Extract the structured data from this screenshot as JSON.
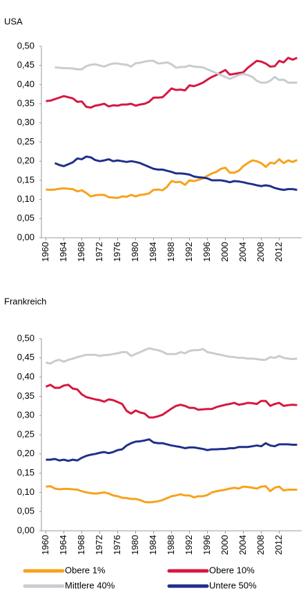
{
  "chart_data": [
    {
      "type": "line",
      "title": "USA",
      "x": [
        1960,
        1961,
        1962,
        1963,
        1964,
        1965,
        1966,
        1967,
        1968,
        1969,
        1970,
        1971,
        1972,
        1973,
        1974,
        1975,
        1976,
        1977,
        1978,
        1979,
        1980,
        1981,
        1982,
        1983,
        1984,
        1985,
        1986,
        1987,
        1988,
        1989,
        1990,
        1991,
        1992,
        1993,
        1994,
        1995,
        1996,
        1997,
        1998,
        1999,
        2000,
        2001,
        2002,
        2003,
        2004,
        2005,
        2006,
        2007,
        2008,
        2009,
        2010,
        2011,
        2012,
        2013,
        2014,
        2015,
        2016
      ],
      "xlim": [
        1959,
        2017
      ],
      "xticks": [
        1960,
        1964,
        1968,
        1972,
        1976,
        1980,
        1984,
        1988,
        1992,
        1996,
        2000,
        2004,
        2008,
        2012
      ],
      "ylim": [
        0,
        0.5
      ],
      "yticks": [
        {
          "value": 0,
          "label": "0,00"
        },
        {
          "value": 0.05,
          "label": "0,05"
        },
        {
          "value": 0.1,
          "label": "0,10"
        },
        {
          "value": 0.15,
          "label": "0,15"
        },
        {
          "value": 0.2,
          "label": "0,20"
        },
        {
          "value": 0.25,
          "label": "0,25"
        },
        {
          "value": 0.3,
          "label": "0,30"
        },
        {
          "value": 0.35,
          "label": "0,35"
        },
        {
          "value": 0.4,
          "label": "0,40"
        },
        {
          "value": 0.45,
          "label": "0,45"
        },
        {
          "value": 0.5,
          "label": "0,50"
        }
      ],
      "legend": "bottom",
      "series": [
        {
          "name": "Obere 1%",
          "color": "#f7a21b",
          "values": [
            0.126,
            0.125,
            0.126,
            0.128,
            0.129,
            0.128,
            0.127,
            0.121,
            0.124,
            0.117,
            0.108,
            0.111,
            0.112,
            0.112,
            0.106,
            0.105,
            0.104,
            0.108,
            0.107,
            0.112,
            0.108,
            0.112,
            0.113,
            0.116,
            0.125,
            0.126,
            0.124,
            0.133,
            0.148,
            0.145,
            0.146,
            0.138,
            0.15,
            0.148,
            0.151,
            0.155,
            0.162,
            0.168,
            0.172,
            0.18,
            0.183,
            0.17,
            0.17,
            0.175,
            0.187,
            0.195,
            0.202,
            0.2,
            0.195,
            0.185,
            0.196,
            0.194,
            0.205,
            0.195,
            0.202,
            0.198,
            0.203
          ]
        },
        {
          "name": "Obere 10%",
          "color": "#d6173f",
          "values": [
            0.357,
            0.358,
            0.362,
            0.366,
            0.37,
            0.367,
            0.364,
            0.355,
            0.356,
            0.342,
            0.34,
            0.345,
            0.347,
            0.35,
            0.343,
            0.346,
            0.345,
            0.348,
            0.348,
            0.35,
            0.345,
            0.348,
            0.35,
            0.355,
            0.366,
            0.366,
            0.367,
            0.378,
            0.39,
            0.386,
            0.387,
            0.385,
            0.398,
            0.396,
            0.4,
            0.405,
            0.413,
            0.42,
            0.425,
            0.432,
            0.438,
            0.426,
            0.428,
            0.43,
            0.432,
            0.444,
            0.453,
            0.462,
            0.46,
            0.455,
            0.447,
            0.448,
            0.462,
            0.458,
            0.47,
            0.465,
            0.47
          ]
        },
        {
          "name": "Mittlere 40%",
          "color": "#c8ccd0",
          "values": [
            null,
            null,
            0.445,
            0.444,
            0.443,
            0.443,
            0.442,
            0.44,
            0.44,
            0.448,
            0.452,
            0.453,
            0.45,
            0.447,
            0.452,
            0.455,
            0.455,
            0.453,
            0.452,
            0.447,
            0.456,
            0.457,
            0.46,
            0.462,
            0.462,
            0.455,
            0.456,
            0.458,
            0.453,
            0.444,
            0.446,
            0.446,
            0.45,
            0.447,
            0.446,
            0.445,
            0.44,
            0.435,
            0.43,
            0.425,
            0.42,
            0.415,
            0.42,
            0.425,
            0.428,
            0.425,
            0.42,
            0.41,
            0.405,
            0.405,
            0.41,
            0.42,
            0.412,
            0.413,
            0.405,
            0.405,
            0.405
          ]
        },
        {
          "name": "Untere 50%",
          "color": "#1f2f8a",
          "values": [
            null,
            null,
            0.195,
            0.19,
            0.187,
            0.192,
            0.197,
            0.207,
            0.205,
            0.212,
            0.21,
            0.203,
            0.2,
            0.202,
            0.205,
            0.2,
            0.202,
            0.2,
            0.198,
            0.2,
            0.198,
            0.195,
            0.19,
            0.185,
            0.18,
            0.178,
            0.178,
            0.175,
            0.172,
            0.168,
            0.168,
            0.167,
            0.165,
            0.16,
            0.158,
            0.157,
            0.155,
            0.15,
            0.15,
            0.15,
            0.148,
            0.145,
            0.148,
            0.147,
            0.145,
            0.142,
            0.14,
            0.137,
            0.135,
            0.137,
            0.135,
            0.13,
            0.127,
            0.125,
            0.127,
            0.127,
            0.125
          ]
        }
      ]
    },
    {
      "type": "line",
      "title": "Frankreich",
      "x": [
        1960,
        1961,
        1962,
        1963,
        1964,
        1965,
        1966,
        1967,
        1968,
        1969,
        1970,
        1971,
        1972,
        1973,
        1974,
        1975,
        1976,
        1977,
        1978,
        1979,
        1980,
        1981,
        1982,
        1983,
        1984,
        1985,
        1986,
        1987,
        1988,
        1989,
        1990,
        1991,
        1992,
        1993,
        1994,
        1995,
        1996,
        1997,
        1998,
        1999,
        2000,
        2001,
        2002,
        2003,
        2004,
        2005,
        2006,
        2007,
        2008,
        2009,
        2010,
        2011,
        2012,
        2013,
        2014,
        2015,
        2016
      ],
      "xlim": [
        1959,
        2017
      ],
      "xticks": [
        1960,
        1964,
        1968,
        1972,
        1976,
        1980,
        1984,
        1988,
        1992,
        1996,
        2000,
        2004,
        2008,
        2012
      ],
      "ylim": [
        0,
        0.5
      ],
      "yticks": [
        {
          "value": 0,
          "label": "0,00"
        },
        {
          "value": 0.05,
          "label": "0,05"
        },
        {
          "value": 0.1,
          "label": "0,10"
        },
        {
          "value": 0.15,
          "label": "0,15"
        },
        {
          "value": 0.2,
          "label": "0,20"
        },
        {
          "value": 0.25,
          "label": "0,25"
        },
        {
          "value": 0.3,
          "label": "0,30"
        },
        {
          "value": 0.35,
          "label": "0,35"
        },
        {
          "value": 0.4,
          "label": "0,40"
        },
        {
          "value": 0.45,
          "label": "0,45"
        },
        {
          "value": 0.5,
          "label": "0,50"
        }
      ],
      "series": [
        {
          "name": "Obere 1%",
          "color": "#f7a21b",
          "values": [
            0.115,
            0.116,
            0.11,
            0.108,
            0.109,
            0.109,
            0.108,
            0.107,
            0.103,
            0.1,
            0.098,
            0.097,
            0.098,
            0.1,
            0.097,
            0.092,
            0.09,
            0.086,
            0.085,
            0.083,
            0.083,
            0.08,
            0.075,
            0.074,
            0.075,
            0.077,
            0.08,
            0.085,
            0.09,
            0.092,
            0.095,
            0.092,
            0.092,
            0.087,
            0.09,
            0.09,
            0.093,
            0.1,
            0.103,
            0.105,
            0.107,
            0.11,
            0.112,
            0.11,
            0.115,
            0.114,
            0.112,
            0.11,
            0.115,
            0.116,
            0.103,
            0.112,
            0.115,
            0.105,
            0.107,
            0.107,
            0.107
          ]
        },
        {
          "name": "Obere 10%",
          "color": "#d6173f",
          "values": [
            0.375,
            0.38,
            0.372,
            0.372,
            0.378,
            0.38,
            0.37,
            0.368,
            0.355,
            0.348,
            0.345,
            0.342,
            0.34,
            0.336,
            0.342,
            0.34,
            0.335,
            0.33,
            0.312,
            0.305,
            0.313,
            0.308,
            0.305,
            0.295,
            0.295,
            0.298,
            0.302,
            0.31,
            0.318,
            0.325,
            0.328,
            0.325,
            0.32,
            0.32,
            0.315,
            0.316,
            0.317,
            0.317,
            0.322,
            0.325,
            0.328,
            0.33,
            0.333,
            0.328,
            0.33,
            0.333,
            0.332,
            0.33,
            0.338,
            0.338,
            0.325,
            0.33,
            0.333,
            0.325,
            0.327,
            0.328,
            0.327
          ]
        },
        {
          "name": "Mittlere 40%",
          "color": "#c8ccd0",
          "values": [
            0.438,
            0.435,
            0.442,
            0.445,
            0.44,
            0.445,
            0.448,
            0.452,
            0.455,
            0.458,
            0.458,
            0.458,
            0.455,
            0.457,
            0.458,
            0.46,
            0.462,
            0.465,
            0.465,
            0.455,
            0.46,
            0.465,
            0.47,
            0.475,
            0.472,
            0.47,
            0.466,
            0.46,
            0.46,
            0.46,
            0.465,
            0.462,
            0.468,
            0.47,
            0.47,
            0.473,
            0.465,
            0.463,
            0.46,
            0.458,
            0.455,
            0.453,
            0.452,
            0.45,
            0.45,
            0.448,
            0.448,
            0.447,
            0.445,
            0.445,
            0.452,
            0.45,
            0.455,
            0.45,
            0.448,
            0.447,
            0.448
          ]
        },
        {
          "name": "Untere 50%",
          "color": "#1f2f8a",
          "values": [
            0.185,
            0.185,
            0.187,
            0.183,
            0.185,
            0.182,
            0.185,
            0.183,
            0.19,
            0.195,
            0.198,
            0.2,
            0.203,
            0.205,
            0.202,
            0.205,
            0.21,
            0.212,
            0.222,
            0.228,
            0.232,
            0.233,
            0.235,
            0.238,
            0.23,
            0.228,
            0.228,
            0.225,
            0.222,
            0.22,
            0.218,
            0.215,
            0.217,
            0.217,
            0.215,
            0.213,
            0.21,
            0.212,
            0.212,
            0.213,
            0.213,
            0.215,
            0.215,
            0.218,
            0.218,
            0.218,
            0.22,
            0.222,
            0.22,
            0.228,
            0.222,
            0.22,
            0.225,
            0.225,
            0.225,
            0.224,
            0.224
          ]
        }
      ]
    }
  ]
}
